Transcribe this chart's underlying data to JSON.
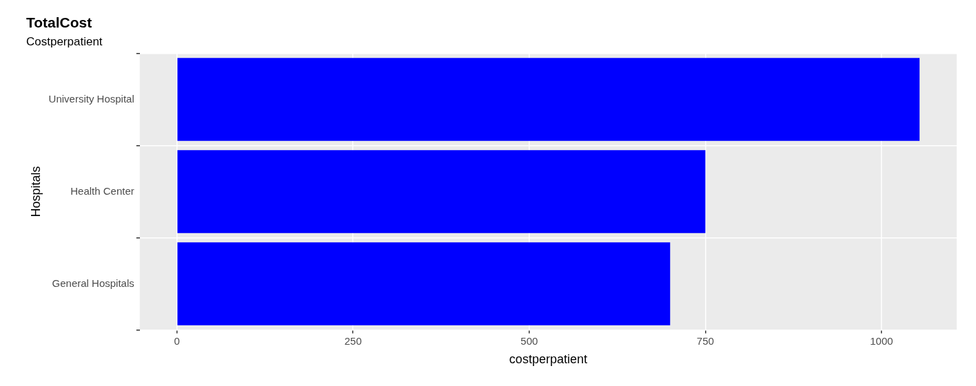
{
  "chart_data": {
    "type": "bar",
    "orientation": "horizontal",
    "title": "TotalCost",
    "subtitle": "Costperpatient",
    "xlabel": "costperpatient",
    "ylabel": "Hospitals",
    "categories": [
      "University Hospital",
      "Health Center",
      "General Hospitals"
    ],
    "values": [
      1054,
      750,
      700
    ],
    "color": "#0000ff",
    "xlim": [
      -52.7,
      1106.7
    ],
    "xticks": [
      0,
      250,
      500,
      750,
      1000
    ],
    "grid": true,
    "legend": false
  }
}
